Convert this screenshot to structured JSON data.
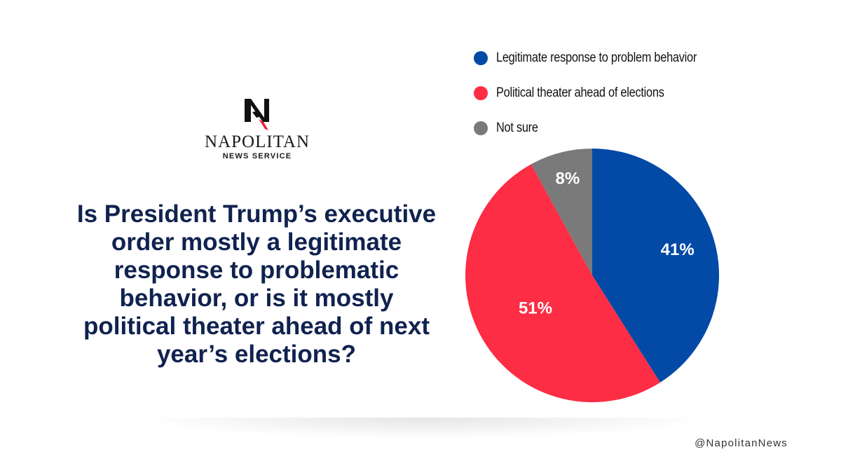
{
  "brand": {
    "name": "NAPOLITAN",
    "subtitle": "NEWS SERVICE",
    "handle": "@NapolitanNews"
  },
  "question": "Is President Trump’s executive order mostly a legitimate response to problematic behavior, or is it mostly political theater ahead of next year’s elections?",
  "chart_data": {
    "type": "pie",
    "categories": [
      "Legitimate response to problem behavior",
      "Political theater ahead of elections",
      "Not sure"
    ],
    "values": [
      41,
      51,
      8
    ],
    "labels": [
      "41%",
      "51%",
      "8%"
    ],
    "colors": [
      "#034aa6",
      "#fc2d44",
      "#7a7a7a"
    ],
    "legend_position": "top",
    "start": "12 o'clock, clockwise"
  }
}
